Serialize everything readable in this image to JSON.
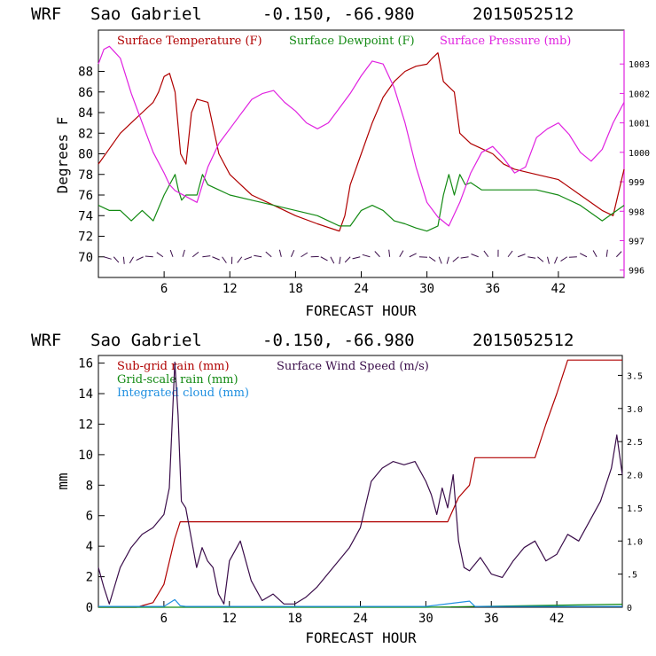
{
  "chart_data": [
    {
      "type": "line",
      "header": {
        "model": "WRF",
        "location": "Sao Gabriel",
        "coords": "-0.150, -66.980",
        "init": "2015052512"
      },
      "xlabel": "FORECAST HOUR",
      "ylabel": "Degrees F",
      "xlim": [
        0,
        48
      ],
      "ylim": [
        68,
        92
      ],
      "y2lim": [
        995.75,
        1004.15
      ],
      "xticks": [
        6,
        12,
        18,
        24,
        30,
        36,
        42
      ],
      "xtick_labels": [
        "6",
        "12",
        "18",
        "24",
        "30",
        "36",
        "42"
      ],
      "yticks": [
        70,
        72,
        74,
        76,
        78,
        80,
        82,
        84,
        86,
        88
      ],
      "ytick_labels": [
        "70",
        "72",
        "74",
        "76",
        "78",
        "80",
        "82",
        "84",
        "86",
        "88"
      ],
      "y2ticks": [
        996,
        997,
        998,
        999,
        1000,
        1001,
        1002,
        1003
      ],
      "y2tick_labels": [
        "996",
        "997",
        "998",
        "999",
        "1000",
        "1001",
        "1002",
        "1003"
      ],
      "series": [
        {
          "name": "Surface Temperature (F)",
          "axis": "left",
          "color": "#b00000",
          "x": [
            0,
            1,
            2,
            3,
            4,
            5,
            5.5,
            6,
            6.5,
            7,
            7.5,
            8,
            8.5,
            9,
            10,
            11,
            12,
            13,
            14,
            16,
            18,
            20,
            22,
            22.5,
            23,
            24,
            25,
            26,
            27,
            28,
            29,
            30,
            30.5,
            31,
            31.5,
            32,
            32.5,
            33,
            34,
            35,
            36,
            37,
            38,
            40,
            42,
            44,
            46,
            47,
            48
          ],
          "y": [
            79,
            80.5,
            82,
            83,
            84,
            85,
            86,
            87.5,
            87.8,
            86,
            80,
            79,
            84,
            85.3,
            85,
            80,
            78,
            77,
            76,
            75,
            74,
            73.2,
            72.5,
            74,
            77,
            80,
            83,
            85.5,
            87,
            88,
            88.5,
            88.7,
            89.3,
            89.8,
            87,
            86.5,
            86,
            82,
            81,
            80.5,
            80,
            79,
            78.5,
            78,
            77.5,
            76,
            74.5,
            74,
            78.5
          ]
        },
        {
          "name": "Surface Dewpoint (F)",
          "axis": "left",
          "color": "#138a13",
          "x": [
            0,
            1,
            2,
            3,
            4,
            5,
            6,
            6.5,
            7,
            7.3,
            7.6,
            8,
            9,
            9.5,
            10,
            11,
            12,
            14,
            16,
            18,
            20,
            22,
            23,
            24,
            25,
            26,
            27,
            28,
            29,
            30,
            31,
            31.5,
            32,
            32.5,
            33,
            33.5,
            34,
            35,
            36,
            37,
            38,
            39,
            40,
            42,
            44,
            46,
            48
          ],
          "y": [
            75,
            74.5,
            74.5,
            73.5,
            74.5,
            73.5,
            76,
            77,
            78,
            76.5,
            75.5,
            76,
            76,
            78,
            77,
            76.5,
            76,
            75.5,
            75,
            74.5,
            74,
            73,
            73,
            74.5,
            75,
            74.5,
            73.5,
            73.2,
            72.8,
            72.5,
            73,
            76,
            78,
            76,
            78,
            77,
            77.2,
            76.5,
            76.5,
            76.5,
            76.5,
            76.5,
            76.5,
            76,
            75,
            73.5,
            75
          ]
        },
        {
          "name": "Surface Pressure (mb)",
          "axis": "right",
          "color": "#e021e0",
          "x": [
            0,
            0.5,
            1,
            2,
            3,
            4,
            5,
            6,
            6.5,
            7,
            8,
            9,
            10,
            11,
            12,
            13,
            14,
            15,
            16,
            17,
            18,
            19,
            20,
            21,
            22,
            23,
            24,
            25,
            26,
            27,
            28,
            29,
            30,
            31,
            32,
            33,
            34,
            35,
            36,
            37,
            38,
            39,
            40,
            41,
            42,
            43,
            44,
            45,
            46,
            47,
            48
          ],
          "y": [
            1003,
            1003.5,
            1003.6,
            1003.2,
            1002,
            1001,
            1000,
            999.3,
            998.9,
            998.7,
            998.5,
            998.3,
            999.5,
            1000.3,
            1000.8,
            1001.3,
            1001.8,
            1002,
            1002.1,
            1001.7,
            1001.4,
            1001,
            1000.8,
            1001,
            1001.5,
            1002,
            1002.6,
            1003.1,
            1003,
            1002.2,
            1001,
            999.5,
            998.3,
            997.8,
            997.5,
            998.3,
            999.3,
            1000,
            1000.2,
            999.8,
            999.3,
            999.5,
            1000.5,
            1000.8,
            1001,
            1000.6,
            1000,
            999.7,
            1000.1,
            1001,
            1001.7
          ]
        }
      ],
      "wind_barbs": "row of wind barbs along the bottom near 70 F",
      "legend": "top"
    },
    {
      "type": "line",
      "header": {
        "model": "WRF",
        "location": "Sao Gabriel",
        "coords": "-0.150, -66.980",
        "init": "2015052512"
      },
      "xlabel": "FORECAST HOUR",
      "ylabel": "mm",
      "xlim": [
        0,
        48
      ],
      "ylim": [
        0,
        16.5
      ],
      "y2lim": [
        0,
        3.8
      ],
      "xticks": [
        6,
        12,
        18,
        24,
        30,
        36,
        42
      ],
      "xtick_labels": [
        "6",
        "12",
        "18",
        "24",
        "30",
        "36",
        "42"
      ],
      "yticks": [
        0,
        2,
        4,
        6,
        8,
        10,
        12,
        14,
        16
      ],
      "ytick_labels": [
        "0",
        "2",
        "4",
        "6",
        "8",
        "10",
        "12",
        "14",
        "16"
      ],
      "y2ticks": [
        0,
        0.5,
        1,
        1.5,
        2,
        2.5,
        3,
        3.5
      ],
      "y2tick_labels": [
        "0",
        ".5",
        "1.0",
        "1.5",
        "2.0",
        "2.5",
        "3.0",
        "3.5"
      ],
      "series": [
        {
          "name": "Sub-grid rain (mm)",
          "axis": "left",
          "color": "#b00000",
          "x": [
            0,
            3.5,
            5,
            6,
            7,
            7.5,
            31.5,
            32,
            33,
            34,
            34.5,
            40,
            41,
            42,
            43,
            48
          ],
          "y": [
            0,
            0,
            0.3,
            1.5,
            4.5,
            5.6,
            5.6,
            5.6,
            7.2,
            8,
            9.8,
            9.8,
            12,
            14,
            16.2,
            16.2
          ]
        },
        {
          "name": "Grid-scale rain (mm)",
          "axis": "left",
          "color": "#138a13",
          "x": [
            0,
            30,
            48
          ],
          "y": [
            0,
            0,
            0.2
          ]
        },
        {
          "name": "Integrated cloud (mm)",
          "axis": "left",
          "color": "#1f8fe0",
          "x": [
            0,
            6,
            7,
            7.5,
            8,
            30,
            34,
            34.5,
            35,
            48
          ],
          "y": [
            0.05,
            0.05,
            0.5,
            0.1,
            0.05,
            0.05,
            0.4,
            0.05,
            0.05,
            0.05
          ]
        },
        {
          "name": "Surface Wind Speed (m/s)",
          "axis": "right",
          "color": "#3a0d4a",
          "x": [
            0,
            0.5,
            1,
            2,
            3,
            4,
            5,
            6,
            6.5,
            7,
            7.3,
            7.6,
            8,
            9,
            9.5,
            10,
            10.5,
            11,
            11.5,
            12,
            13,
            14,
            15,
            16,
            17,
            18,
            19,
            20,
            21,
            22,
            23,
            24,
            25,
            26,
            27,
            28,
            29,
            30,
            30.5,
            31,
            31.5,
            32,
            32.5,
            33,
            33.5,
            34,
            35,
            36,
            37,
            38,
            39,
            40,
            41,
            42,
            43,
            44,
            45,
            46,
            47,
            47.5,
            48
          ],
          "y": [
            0.6,
            0.3,
            0.05,
            0.6,
            0.9,
            1.1,
            1.2,
            1.4,
            1.8,
            3.7,
            2.9,
            1.6,
            1.5,
            0.6,
            0.9,
            0.7,
            0.6,
            0.2,
            0.05,
            0.7,
            1.0,
            0.4,
            0.1,
            0.2,
            0.05,
            0.05,
            0.15,
            0.3,
            0.5,
            0.7,
            0.9,
            1.2,
            1.9,
            2.1,
            2.2,
            2.15,
            2.2,
            1.9,
            1.7,
            1.4,
            1.8,
            1.5,
            2.0,
            1.0,
            0.6,
            0.55,
            0.75,
            0.5,
            0.45,
            0.7,
            0.9,
            1.0,
            0.7,
            0.8,
            1.1,
            1.0,
            1.3,
            1.6,
            2.1,
            2.6,
            2.0
          ]
        }
      ],
      "legend": "top-left"
    }
  ]
}
